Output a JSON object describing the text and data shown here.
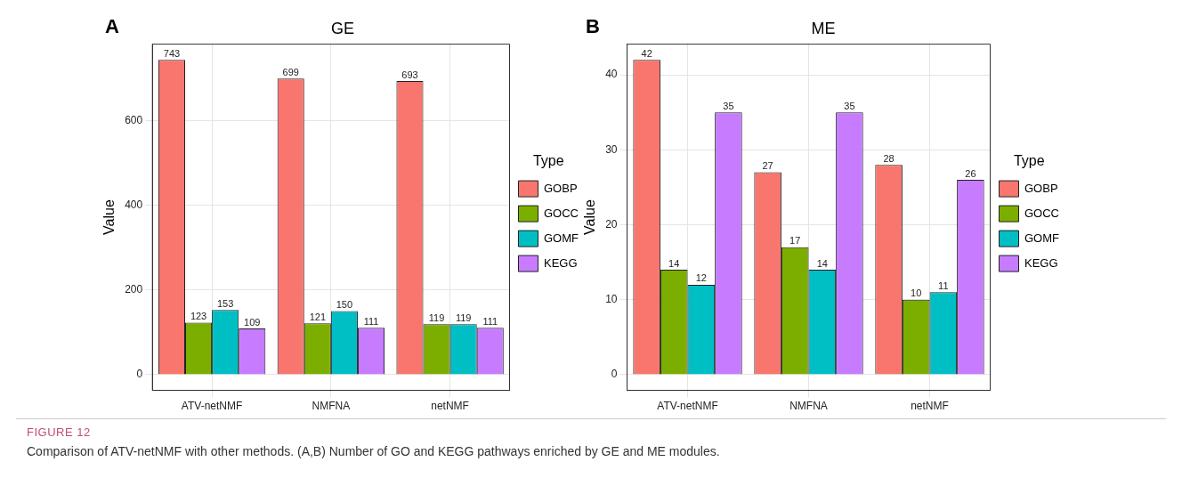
{
  "chart_data": [
    {
      "type": "bar",
      "title": "GE",
      "ylabel": "Value",
      "legend_title": "Type",
      "categories": [
        "ATV-netNMF",
        "NMFNA",
        "netNMF"
      ],
      "series": [
        {
          "name": "GOBP",
          "color": "#f8766d",
          "values": [
            743,
            699,
            693
          ]
        },
        {
          "name": "GOCC",
          "color": "#7cae00",
          "values": [
            123,
            121,
            119
          ]
        },
        {
          "name": "GOMF",
          "color": "#00bfc4",
          "values": [
            153,
            150,
            119
          ]
        },
        {
          "name": "KEGG",
          "color": "#c77cff",
          "values": [
            109,
            111,
            111
          ]
        }
      ],
      "ylim": [
        -37,
        780
      ],
      "yticks": [
        0,
        200,
        400,
        600
      ],
      "grid": true,
      "legend": "right",
      "data_labels": true,
      "annotations": [
        "A"
      ]
    },
    {
      "type": "bar",
      "title": "ME",
      "ylabel": "Value",
      "legend_title": "Type",
      "categories": [
        "ATV-netNMF",
        "NMFNA",
        "netNMF"
      ],
      "series": [
        {
          "name": "GOBP",
          "color": "#f8766d",
          "values": [
            42,
            27,
            28
          ]
        },
        {
          "name": "GOCC",
          "color": "#7cae00",
          "values": [
            14,
            17,
            10
          ]
        },
        {
          "name": "GOMF",
          "color": "#00bfc4",
          "values": [
            12,
            14,
            11
          ]
        },
        {
          "name": "KEGG",
          "color": "#c77cff",
          "values": [
            35,
            35,
            26
          ]
        }
      ],
      "ylim": [
        -2.1,
        44.1
      ],
      "yticks": [
        0,
        10,
        20,
        30,
        40
      ],
      "grid": true,
      "legend": "right",
      "data_labels": true,
      "annotations": [
        "B",
        "FIGURE 12",
        "Comparison of ATV-netNMF with other methods. (A,B) Number of GO and KEGG pathways enriched by GE and ME modules."
      ]
    }
  ]
}
